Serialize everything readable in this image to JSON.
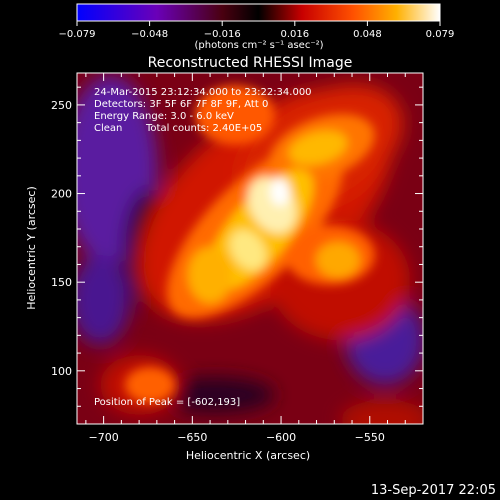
{
  "chart_data": {
    "type": "heatmap",
    "title": "Reconstructed RHESSI Image",
    "xlabel": "Heliocentric X (arcsec)",
    "ylabel": "Heliocentric Y (arcsec)",
    "xlim": [
      -715,
      -520
    ],
    "ylim": [
      70,
      268
    ],
    "xticks": [
      -700,
      -650,
      -600,
      -550
    ],
    "yticks": [
      100,
      150,
      200,
      250
    ],
    "colorbar": {
      "ticks": [
        "-0.079",
        "-0.048",
        "-0.016",
        "0.016",
        "0.048",
        "0.079"
      ],
      "label": "(photons cm⁻² s⁻¹ asec⁻²)",
      "range": [
        -0.079,
        0.079
      ]
    },
    "annotations": {
      "time_range": "24-Mar-2015 23:12:34.000 to 23:22:34.000",
      "detectors": "Detectors: 3F 5F 6F 7F 8F 9F, Att 0",
      "energy": "Energy Range: 3.0 - 6.0 keV",
      "method": "Clean",
      "counts": "Total counts: 2.40E+05",
      "peak": "Position of Peak = [-602,193]"
    },
    "peak": [
      -602,
      193
    ],
    "features": [
      {
        "x": -602,
        "y": 195,
        "value": 0.079
      },
      {
        "x": -625,
        "y": 170,
        "value": 0.07
      },
      {
        "x": -660,
        "y": 145,
        "value": 0.055
      },
      {
        "x": -590,
        "y": 230,
        "value": 0.06
      },
      {
        "x": -565,
        "y": 235,
        "value": 0.05
      },
      {
        "x": -585,
        "y": 140,
        "value": 0.05
      },
      {
        "x": -560,
        "y": 160,
        "value": 0.045
      },
      {
        "x": -640,
        "y": 240,
        "value": 0.045
      },
      {
        "x": -690,
        "y": 110,
        "value": 0.02
      },
      {
        "x": -540,
        "y": 95,
        "value": 0.02
      },
      {
        "x": -690,
        "y": 200,
        "value": -0.05
      },
      {
        "x": -700,
        "y": 235,
        "value": -0.045
      },
      {
        "x": -540,
        "y": 120,
        "value": -0.04
      },
      {
        "x": -700,
        "y": 150,
        "value": -0.03
      }
    ]
  },
  "footer_timestamp": "13-Sep-2017 22:05"
}
